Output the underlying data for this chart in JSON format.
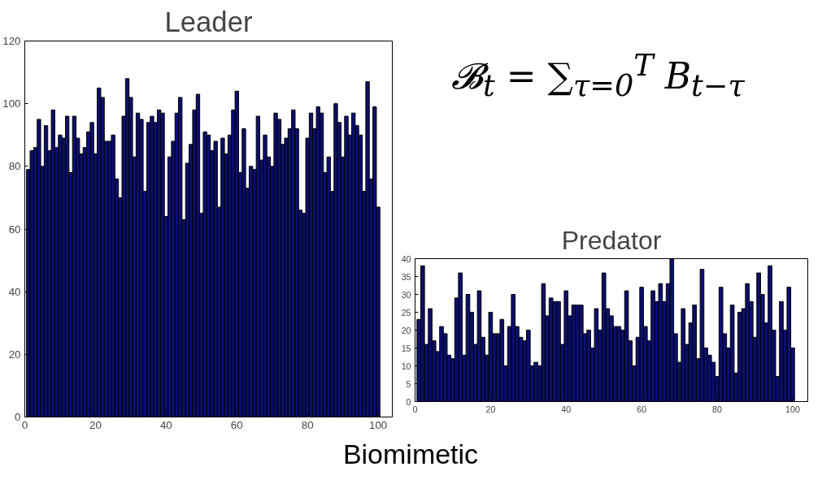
{
  "chart_data": [
    {
      "type": "bar",
      "title": "Leader",
      "color": "#0b0f6e",
      "grid": false,
      "xlim": [
        0,
        104
      ],
      "ylim": [
        0,
        120
      ],
      "xticks": [
        0,
        20,
        40,
        60,
        80,
        100
      ],
      "yticks": [
        0,
        20,
        40,
        60,
        80,
        100,
        120
      ],
      "x": [
        1,
        2,
        3,
        4,
        5,
        6,
        7,
        8,
        9,
        10,
        11,
        12,
        13,
        14,
        15,
        16,
        17,
        18,
        19,
        20,
        21,
        22,
        23,
        24,
        25,
        26,
        27,
        28,
        29,
        30,
        31,
        32,
        33,
        34,
        35,
        36,
        37,
        38,
        39,
        40,
        41,
        42,
        43,
        44,
        45,
        46,
        47,
        48,
        49,
        50,
        51,
        52,
        53,
        54,
        55,
        56,
        57,
        58,
        59,
        60,
        61,
        62,
        63,
        64,
        65,
        66,
        67,
        68,
        69,
        70,
        71,
        72,
        73,
        74,
        75,
        76,
        77,
        78,
        79,
        80,
        81,
        82,
        83,
        84,
        85,
        86,
        87,
        88,
        89,
        90,
        91,
        92,
        93,
        94,
        95,
        96,
        97,
        98,
        99,
        100
      ],
      "values": [
        79,
        85,
        86,
        95,
        80,
        93,
        85,
        98,
        86,
        90,
        89,
        96,
        78,
        96,
        89,
        84,
        86,
        91,
        94,
        84,
        105,
        102,
        88,
        88,
        90,
        76,
        70,
        96,
        108,
        102,
        83,
        97,
        95,
        72,
        94,
        96,
        94,
        98,
        97,
        64,
        83,
        88,
        97,
        102,
        63,
        81,
        87,
        98,
        103,
        65,
        91,
        90,
        85,
        88,
        67,
        89,
        84,
        90,
        98,
        104,
        78,
        92,
        73,
        80,
        79,
        96,
        82,
        90,
        83,
        80,
        97,
        95,
        87,
        89,
        92,
        98,
        92,
        66,
        65,
        89,
        97,
        92,
        99,
        97,
        78,
        83,
        72,
        100,
        94,
        83,
        96,
        90,
        97,
        93,
        90,
        72,
        107,
        76,
        99,
        67
      ],
      "annotations": [
        "𝓑$_{t}$ = ∑$_{τ=0}$$^{T}$ B$_{t−τ}$",
        "Biomimetic"
      ]
    },
    {
      "type": "bar",
      "title": "Predator",
      "color": "#0b0f6e",
      "grid": false,
      "xlim": [
        0,
        104
      ],
      "ylim": [
        0,
        40
      ],
      "xticks": [
        0,
        20,
        40,
        60,
        80,
        100
      ],
      "yticks": [
        0,
        5,
        10,
        15,
        20,
        25,
        30,
        35,
        40
      ],
      "x": [
        1,
        2,
        3,
        4,
        5,
        6,
        7,
        8,
        9,
        10,
        11,
        12,
        13,
        14,
        15,
        16,
        17,
        18,
        19,
        20,
        21,
        22,
        23,
        24,
        25,
        26,
        27,
        28,
        29,
        30,
        31,
        32,
        33,
        34,
        35,
        36,
        37,
        38,
        39,
        40,
        41,
        42,
        43,
        44,
        45,
        46,
        47,
        48,
        49,
        50,
        51,
        52,
        53,
        54,
        55,
        56,
        57,
        58,
        59,
        60,
        61,
        62,
        63,
        64,
        65,
        66,
        67,
        68,
        69,
        70,
        71,
        72,
        73,
        74,
        75,
        76,
        77,
        78,
        79,
        80,
        81,
        82,
        83,
        84,
        85,
        86,
        87,
        88,
        89,
        90,
        91,
        92,
        93,
        94,
        95,
        96,
        97,
        98,
        99,
        100
      ],
      "values": [
        23,
        38,
        16,
        26,
        17,
        14,
        21,
        19,
        13,
        12,
        29,
        36,
        13,
        30,
        25,
        16,
        31,
        18,
        13,
        25,
        19,
        19,
        23,
        10,
        21,
        30,
        21,
        18,
        17,
        20,
        10,
        11,
        10,
        33,
        24,
        29,
        28,
        28,
        16,
        31,
        24,
        27,
        27,
        27,
        19,
        20,
        15,
        26,
        20,
        36,
        26,
        24,
        21,
        21,
        20,
        31,
        17,
        10,
        18,
        32,
        21,
        17,
        31,
        28,
        33,
        28,
        33,
        40,
        19,
        11,
        26,
        16,
        22,
        27,
        12,
        37,
        15,
        13,
        11,
        7,
        32,
        19,
        15,
        27,
        8,
        25,
        26,
        33,
        28,
        18,
        36,
        30,
        22,
        38,
        20,
        7,
        28,
        20,
        32,
        15
      ]
    }
  ]
}
